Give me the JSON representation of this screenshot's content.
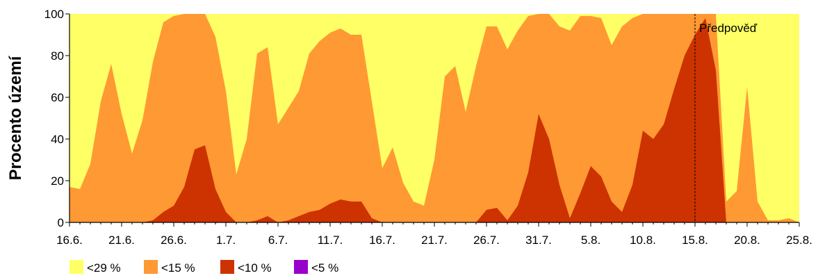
{
  "chart_data": {
    "type": "area",
    "subtype": "stacked-percent-area",
    "ylabel": "Procento území",
    "ylim": [
      0,
      100
    ],
    "yticks": [
      0,
      20,
      40,
      60,
      80,
      100
    ],
    "x_tick_labels": [
      "16.6.",
      "21.6.",
      "26.6.",
      "1.7.",
      "6.7.",
      "11.7.",
      "16.7.",
      "21.7.",
      "26.7.",
      "31.7.",
      "5.8.",
      "10.8.",
      "15.8.",
      "20.8.",
      "25.8."
    ],
    "x_start": "16.6.",
    "x_end": "25.8.",
    "forecast_start": "15.8.",
    "annotation": "Předpověď",
    "grid": false,
    "legend_position": "bottom-left",
    "series": [
      {
        "name": "<29 %",
        "color": "#ffff66",
        "values": [
          100,
          100,
          100,
          100,
          100,
          100,
          100,
          100,
          100,
          100,
          100,
          100,
          100,
          100,
          100,
          100,
          100,
          100,
          100,
          100,
          100,
          100,
          100,
          100,
          100,
          100,
          100,
          100,
          100,
          100,
          100,
          100,
          100,
          100,
          100,
          100,
          100,
          100,
          100,
          100,
          100,
          100,
          100,
          100,
          100,
          100,
          100,
          100,
          100,
          100,
          100,
          100,
          100,
          100,
          100,
          100,
          100,
          100,
          100,
          100,
          100,
          100,
          100,
          100,
          100,
          100,
          100,
          100,
          100,
          100,
          100
        ]
      },
      {
        "name": "<15 %",
        "color": "#ff9933",
        "values": [
          17,
          16,
          28,
          58,
          76,
          52,
          33,
          49,
          77,
          96,
          99,
          100,
          100,
          100,
          89,
          63,
          23,
          40,
          81,
          84,
          47,
          55,
          63,
          81,
          87,
          91,
          93,
          90,
          90,
          58,
          26,
          36,
          19,
          10,
          8,
          30,
          70,
          75,
          53,
          75,
          94,
          94,
          83,
          92,
          99,
          100,
          100,
          94,
          92,
          99,
          99,
          98,
          85,
          94,
          98,
          100,
          100,
          100,
          100,
          100,
          100,
          100,
          100,
          10,
          15,
          65,
          10,
          1,
          1,
          2,
          0
        ]
      },
      {
        "name": "<10 %",
        "color": "#cc3300",
        "values": [
          0,
          0,
          0,
          0,
          0,
          0,
          0,
          0,
          1,
          5,
          8,
          17,
          35,
          37,
          16,
          5,
          0,
          0,
          1,
          3,
          0,
          1,
          3,
          5,
          6,
          9,
          11,
          10,
          10,
          2,
          0,
          0,
          0,
          0,
          0,
          0,
          0,
          0,
          0,
          0,
          6,
          7,
          1,
          8,
          24,
          52,
          40,
          18,
          2,
          14,
          27,
          22,
          10,
          5,
          18,
          44,
          40,
          47,
          64,
          80,
          90,
          98,
          73,
          0,
          0,
          0,
          0,
          0,
          0,
          0,
          0
        ]
      },
      {
        "name": "<5 %",
        "color": "#9900cc",
        "values": [
          0,
          0,
          0,
          0,
          0,
          0,
          0,
          0,
          0,
          0,
          0,
          0,
          0,
          0,
          0,
          0,
          0,
          0,
          0,
          0,
          0,
          0,
          0,
          0,
          0,
          0,
          0,
          0,
          0,
          0,
          0,
          0,
          0,
          0,
          0,
          0,
          0,
          0,
          0,
          0,
          0,
          0,
          0,
          0,
          0,
          0,
          0,
          0,
          0,
          0,
          0,
          0,
          0,
          0,
          0,
          0,
          0,
          0,
          0,
          0,
          0,
          0,
          0,
          0,
          0,
          0,
          0,
          0,
          0,
          0,
          0
        ]
      }
    ]
  }
}
